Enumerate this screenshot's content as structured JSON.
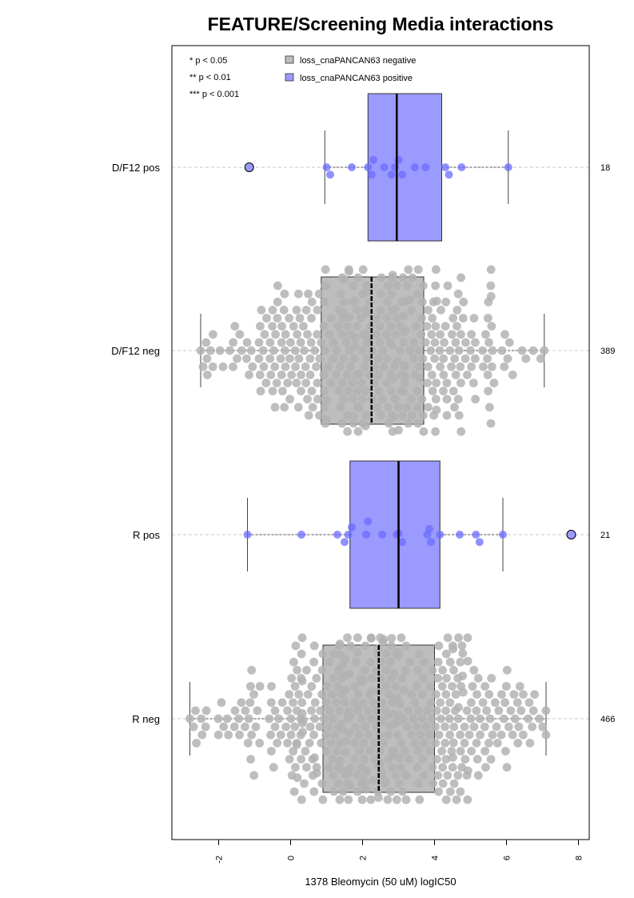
{
  "chart_data": {
    "type": "box-beeswarm",
    "title": "FEATURE/Screening Media interactions",
    "xlabel": "1378 Bleomycin (50 uM) logIC50",
    "xlim": [
      -3.3,
      8.3
    ],
    "xticks": [
      -2,
      0,
      2,
      4,
      6,
      8
    ],
    "xtick_labels": [
      "-2",
      "0",
      "2",
      "4",
      "6",
      "8"
    ],
    "grid": false,
    "significance_legend": [
      "* p < 0.05",
      "** p < 0.01",
      "*** p < 0.001"
    ],
    "series_legend": [
      {
        "name": "loss_cnaPANCAN63 negative",
        "color": "#bebebe"
      },
      {
        "name": "loss_cnaPANCAN63 positive",
        "color": "#9a9aff"
      }
    ],
    "groups": [
      {
        "label": "D/F12 pos",
        "count": "18",
        "status": "positive",
        "whisker_low": 0.95,
        "q1": 2.15,
        "median": 2.95,
        "q3": 4.2,
        "whisker_high": 6.05,
        "points": [
          1.0,
          1.1,
          1.7,
          2.15,
          2.25,
          2.3,
          2.6,
          2.8,
          2.9,
          3.0,
          3.1,
          3.45,
          3.75,
          4.3,
          4.4,
          4.75,
          6.05
        ],
        "outliers": [
          -1.15
        ]
      },
      {
        "label": "D/F12 neg",
        "count": "389",
        "status": "negative",
        "whisker_low": -2.5,
        "q1": 0.85,
        "median": 2.25,
        "q3": 3.7,
        "whisker_high": 7.05,
        "n_points": 389,
        "outliers": []
      },
      {
        "label": "R pos",
        "count": "21",
        "status": "positive",
        "whisker_low": -1.2,
        "q1": 1.65,
        "median": 3.0,
        "q3": 4.15,
        "whisker_high": 5.9,
        "points": [
          -1.2,
          0.3,
          1.3,
          1.5,
          1.6,
          1.7,
          2.1,
          2.15,
          2.55,
          2.95,
          3.0,
          3.1,
          3.8,
          3.85,
          3.9,
          4.15,
          4.7,
          5.15,
          5.25,
          5.9
        ],
        "outliers": [
          7.8
        ]
      },
      {
        "label": "R neg",
        "count": "466",
        "status": "negative",
        "whisker_low": -2.8,
        "q1": 0.9,
        "median": 2.45,
        "q3": 4.0,
        "whisker_high": 7.1,
        "n_points": 466,
        "outliers": []
      }
    ]
  }
}
